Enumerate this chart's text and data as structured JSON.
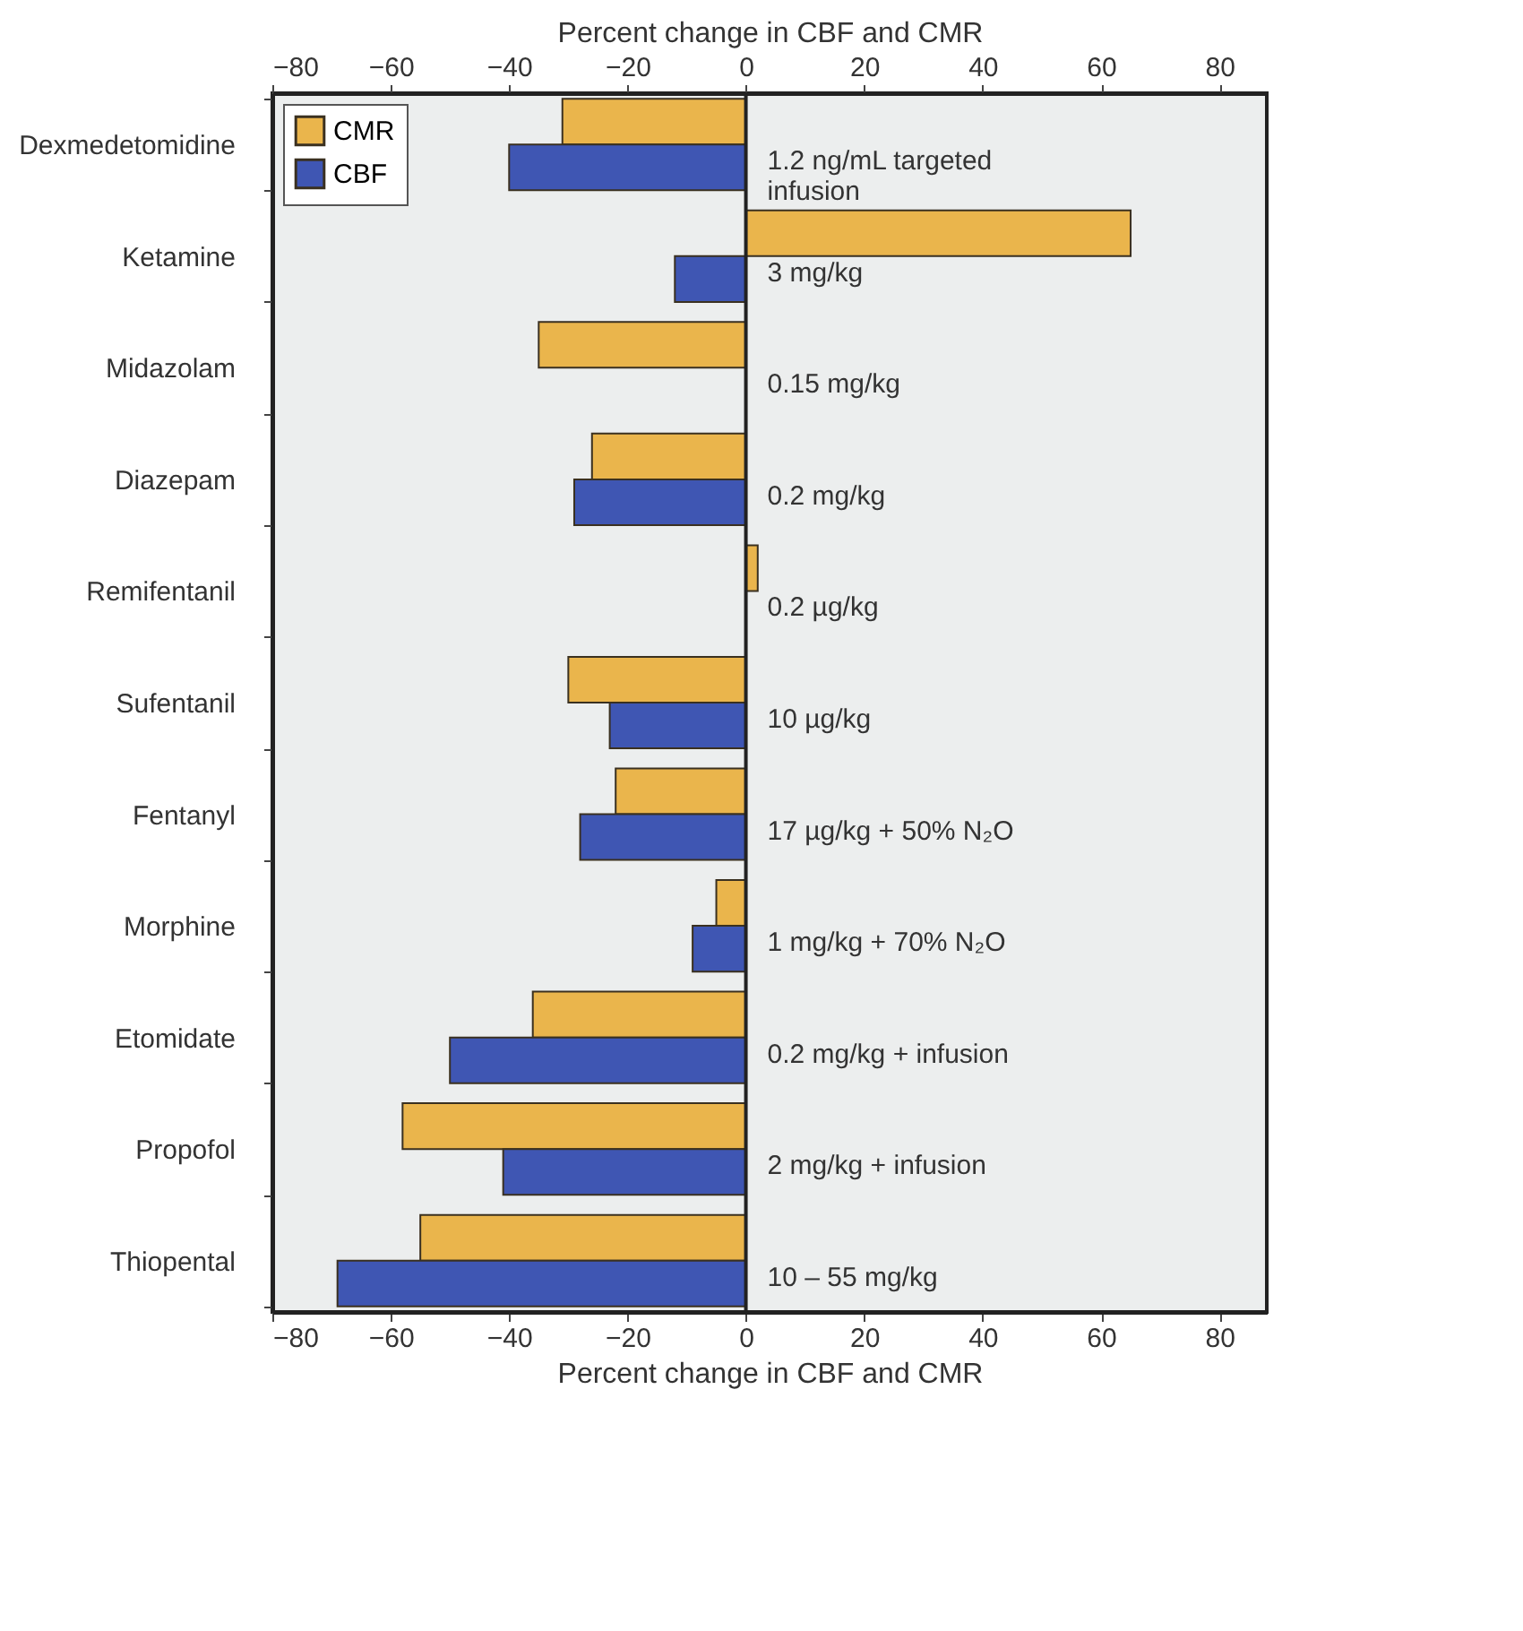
{
  "chart_data": {
    "type": "bar",
    "orientation": "horizontal",
    "xlabel": "Percent change in CBF and CMR",
    "x2label": "Percent change in CBF and CMR",
    "categories": [
      "Dexmedetomidine",
      "Ketamine",
      "Midazolam",
      "Diazepam",
      "Remifentanil",
      "Sufentanil",
      "Fentanyl",
      "Morphine",
      "Etomidate",
      "Propofol",
      "Thiopental"
    ],
    "series": [
      {
        "name": "CMR",
        "color": "#eab54c",
        "values": [
          -31,
          65,
          -35,
          -26,
          2,
          -30,
          -22,
          -5,
          -36,
          -58,
          -55
        ]
      },
      {
        "name": "CBF",
        "color": "#3f56b3",
        "values": [
          -40,
          -12,
          null,
          -29,
          null,
          -23,
          -28,
          -9,
          -50,
          -41,
          -69
        ]
      }
    ],
    "xlim": [
      -80,
      88
    ],
    "xticks": [
      -80,
      -60,
      -40,
      -20,
      0,
      20,
      40,
      60,
      80
    ],
    "x2lim": [
      -80,
      88
    ],
    "x2ticks": [
      -80,
      -60,
      -40,
      -20,
      0,
      20,
      40,
      60,
      80
    ],
    "ref_lines": [
      {
        "axis": "x",
        "value": 0
      }
    ],
    "annotations": [
      "1.2 ng/mL targeted\ninfusion",
      "3 mg/kg",
      "0.15 mg/kg",
      "0.2 mg/kg",
      "0.2 µg/kg",
      "10 µg/kg",
      "17 µg/kg + 50% N₂O",
      "1 mg/kg + 70% N₂O",
      "0.2  mg/kg + infusion",
      "2  mg/kg + infusion",
      "10 – 55  mg/kg"
    ],
    "legend": "top left",
    "grid": false
  }
}
